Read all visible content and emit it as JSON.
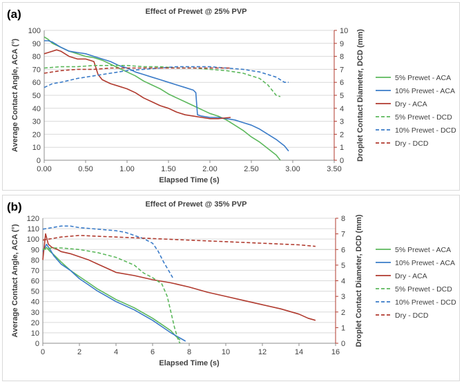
{
  "chart_data": [
    {
      "type": "line",
      "panel_label": "(a)",
      "title": "Effect of Prewet @ 25% PVP",
      "xlabel": "Elapsed Time (s)",
      "ylabel": "Average Contact Angle, ACA (°)",
      "y2label": "Droplet Contact Diameter, DCD (mm)",
      "xlim": [
        0,
        3.5
      ],
      "xticks": [
        0,
        0.5,
        1,
        1.5,
        2,
        2.5,
        3,
        3.5
      ],
      "xtick_labels": [
        "0.00",
        "0.50",
        "1.00",
        "1.50",
        "2.00",
        "2.50",
        "3.00",
        "3.50"
      ],
      "ylim": [
        0,
        100
      ],
      "yticks": [
        0,
        10,
        20,
        30,
        40,
        50,
        60,
        70,
        80,
        90,
        100
      ],
      "y2lim": [
        0,
        10
      ],
      "y2ticks": [
        0,
        1,
        2,
        3,
        4,
        5,
        6,
        7,
        8,
        9,
        10
      ],
      "grid": true,
      "legend_position": "right",
      "series": [
        {
          "name": "5% Prewet - ACA",
          "axis": "left",
          "style": "solid",
          "color": "#5cb85c",
          "x": [
            0,
            0.05,
            0.1,
            0.2,
            0.3,
            0.4,
            0.5,
            0.6,
            0.7,
            0.8,
            0.9,
            1.0,
            1.1,
            1.2,
            1.3,
            1.4,
            1.5,
            1.6,
            1.7,
            1.8,
            1.9,
            2.0,
            2.1,
            2.2,
            2.3,
            2.4,
            2.5,
            2.6,
            2.7,
            2.8,
            2.85
          ],
          "y": [
            95,
            93,
            90,
            87,
            84,
            82,
            80,
            79,
            77,
            74,
            71,
            68,
            65,
            61,
            58,
            55,
            51,
            48,
            45,
            42,
            39,
            36,
            34,
            31,
            27,
            23,
            18,
            14,
            9,
            4,
            0
          ]
        },
        {
          "name": "10% Prewet - ACA",
          "axis": "left",
          "style": "solid",
          "color": "#3a7bc8",
          "x": [
            0,
            0.05,
            0.1,
            0.2,
            0.3,
            0.4,
            0.5,
            0.6,
            0.7,
            0.8,
            0.9,
            1.0,
            1.1,
            1.2,
            1.3,
            1.4,
            1.5,
            1.6,
            1.7,
            1.8,
            1.83,
            1.85,
            1.9,
            2.0,
            2.1,
            2.2,
            2.3,
            2.4,
            2.5,
            2.6,
            2.7,
            2.8,
            2.9,
            2.95
          ],
          "y": [
            92,
            92,
            91,
            87,
            84,
            83,
            82,
            80,
            78,
            76,
            73,
            71,
            68,
            66,
            64,
            62,
            60,
            58,
            56,
            54,
            52,
            35,
            34,
            33,
            33,
            32,
            31,
            29,
            27,
            24,
            20,
            16,
            11,
            7
          ]
        },
        {
          "name": "Dry - ACA",
          "axis": "left",
          "style": "solid",
          "color": "#b03a2e",
          "x": [
            0,
            0.05,
            0.1,
            0.15,
            0.2,
            0.3,
            0.4,
            0.5,
            0.6,
            0.65,
            0.7,
            0.8,
            0.9,
            1.0,
            1.1,
            1.2,
            1.3,
            1.4,
            1.5,
            1.6,
            1.7,
            1.8,
            1.9,
            2.0,
            2.1,
            2.25
          ],
          "y": [
            82,
            83,
            84,
            85,
            84,
            80,
            78,
            78,
            76,
            66,
            62,
            59,
            57,
            55,
            52,
            48,
            45,
            42,
            40,
            37,
            35,
            34,
            33,
            32,
            32,
            33
          ]
        },
        {
          "name": "5% Prewet - DCD",
          "axis": "right",
          "style": "dashed",
          "color": "#5cb85c",
          "x": [
            0,
            0.2,
            0.4,
            0.6,
            0.8,
            1.0,
            1.2,
            1.4,
            1.6,
            1.8,
            2.0,
            2.2,
            2.4,
            2.6,
            2.7,
            2.8,
            2.85
          ],
          "y": [
            7.1,
            7.2,
            7.2,
            7.3,
            7.3,
            7.3,
            7.2,
            7.2,
            7.1,
            7.1,
            7.0,
            6.9,
            6.7,
            6.3,
            5.8,
            5.0,
            4.9
          ]
        },
        {
          "name": "10% Prewet - DCD",
          "axis": "right",
          "style": "dashed",
          "color": "#3a7bc8",
          "x": [
            0,
            0.1,
            0.2,
            0.4,
            0.6,
            0.8,
            1.0,
            1.2,
            1.4,
            1.6,
            1.8,
            2.0,
            2.2,
            2.4,
            2.6,
            2.8,
            2.9,
            2.95
          ],
          "y": [
            5.6,
            5.9,
            6.0,
            6.3,
            6.5,
            6.7,
            6.9,
            7.0,
            7.1,
            7.2,
            7.2,
            7.2,
            7.1,
            7.0,
            6.8,
            6.4,
            6.0,
            6.0
          ]
        },
        {
          "name": "Dry - DCD",
          "axis": "right",
          "style": "dashed",
          "color": "#b03a2e",
          "x": [
            0,
            0.2,
            0.4,
            0.6,
            0.8,
            1.0,
            1.2,
            1.4,
            1.6,
            1.8,
            2.0,
            2.2,
            2.25
          ],
          "y": [
            6.7,
            6.9,
            7.0,
            7.0,
            7.1,
            7.1,
            7.1,
            7.1,
            7.1,
            7.1,
            7.1,
            7.1,
            7.1
          ]
        }
      ]
    },
    {
      "type": "line",
      "panel_label": "(b)",
      "title": "Effect of Prewet @ 35% PVP",
      "xlabel": "Elapsed Time (s)",
      "ylabel": "Average Contact Angle, ACA (°)",
      "y2label": "Droplet Contact Diameter, DCD (mm)",
      "xlim": [
        0,
        16
      ],
      "xticks": [
        0,
        2,
        4,
        6,
        8,
        10,
        12,
        14,
        16
      ],
      "xtick_labels": [
        "0",
        "2",
        "4",
        "6",
        "8",
        "10",
        "12",
        "14",
        "16"
      ],
      "ylim": [
        0,
        120
      ],
      "yticks": [
        0,
        10,
        20,
        30,
        40,
        50,
        60,
        70,
        80,
        90,
        100,
        110,
        120
      ],
      "y2lim": [
        0,
        8
      ],
      "y2ticks": [
        0,
        1,
        2,
        3,
        4,
        5,
        6,
        7,
        8
      ],
      "grid": true,
      "legend_position": "right",
      "series": [
        {
          "name": "5% Prewet - ACA",
          "axis": "left",
          "style": "solid",
          "color": "#5cb85c",
          "x": [
            0,
            0.2,
            0.4,
            0.6,
            1,
            1.5,
            2,
            2.5,
            3,
            3.5,
            4,
            4.5,
            5,
            5.5,
            6,
            6.5,
            7,
            7.2,
            7.5
          ],
          "y": [
            90,
            92,
            88,
            85,
            78,
            70,
            64,
            58,
            52,
            47,
            42,
            38,
            34,
            29,
            24,
            18,
            12,
            8,
            3
          ]
        },
        {
          "name": "10% Prewet - ACA",
          "axis": "left",
          "style": "solid",
          "color": "#3a7bc8",
          "x": [
            0,
            0.2,
            0.4,
            0.6,
            1,
            1.5,
            2,
            2.5,
            3,
            3.5,
            4,
            4.5,
            5,
            5.5,
            6,
            6.5,
            7,
            7.5,
            7.8
          ],
          "y": [
            88,
            95,
            90,
            84,
            76,
            70,
            62,
            56,
            50,
            45,
            40,
            36,
            32,
            27,
            22,
            16,
            10,
            5,
            2
          ]
        },
        {
          "name": "Dry - ACA",
          "axis": "left",
          "style": "solid",
          "color": "#b03a2e",
          "x": [
            0,
            0.15,
            0.3,
            0.5,
            0.8,
            1,
            1.5,
            2,
            2.5,
            3,
            3.5,
            4,
            5,
            6,
            7,
            8,
            9,
            10,
            11,
            12,
            13,
            14,
            14.5,
            14.9
          ],
          "y": [
            80,
            105,
            95,
            92,
            90,
            88,
            86,
            83,
            80,
            76,
            72,
            68,
            65,
            61,
            58,
            54,
            49,
            45,
            41,
            37,
            33,
            28,
            24,
            22
          ]
        },
        {
          "name": "5% Prewet - DCD",
          "axis": "right",
          "style": "dashed",
          "color": "#5cb85c",
          "x": [
            0,
            0.5,
            1,
            2,
            3,
            4,
            5,
            5.5,
            6,
            6.5,
            6.8,
            7,
            7.2,
            7.4,
            7.5
          ],
          "y": [
            6.0,
            6.1,
            6.1,
            6.0,
            5.8,
            5.5,
            5.0,
            4.5,
            4.2,
            3.8,
            3.0,
            2.0,
            1.0,
            0.2,
            0
          ]
        },
        {
          "name": "10% Prewet - DCD",
          "axis": "right",
          "style": "dashed",
          "color": "#3a7bc8",
          "x": [
            0,
            0.5,
            1,
            1.5,
            2,
            3,
            4,
            4.5,
            5,
            5.5,
            6,
            6.3,
            6.6,
            6.9,
            7.1
          ],
          "y": [
            7.3,
            7.4,
            7.5,
            7.5,
            7.4,
            7.3,
            7.2,
            7.1,
            6.9,
            6.7,
            6.4,
            5.9,
            5.2,
            4.6,
            4.2
          ]
        },
        {
          "name": "Dry - DCD",
          "axis": "right",
          "style": "dashed",
          "color": "#b03a2e",
          "x": [
            0,
            0.5,
            1,
            2,
            4,
            6,
            8,
            10,
            12,
            14,
            14.9
          ],
          "y": [
            6.6,
            6.7,
            6.8,
            6.9,
            6.8,
            6.7,
            6.6,
            6.5,
            6.4,
            6.3,
            6.2
          ]
        }
      ]
    }
  ]
}
